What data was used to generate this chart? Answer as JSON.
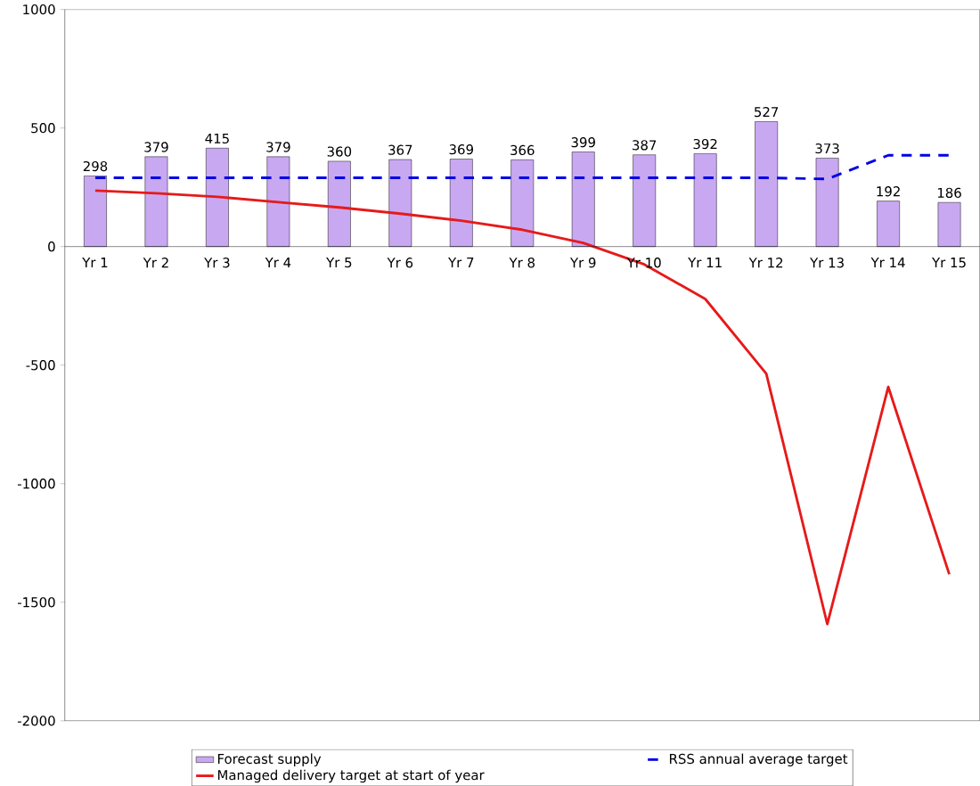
{
  "chart_data": {
    "type": "bar",
    "categories": [
      "Yr 1",
      "Yr 2",
      "Yr 3",
      "Yr 4",
      "Yr 5",
      "Yr 6",
      "Yr 7",
      "Yr 8",
      "Yr 9",
      "Yr 10",
      "Yr 11",
      "Yr 12",
      "Yr 13",
      "Yr 14",
      "Yr 15"
    ],
    "series": [
      {
        "name": "Forecast supply",
        "color": "#c9a8f2",
        "values": [
          298,
          379,
          415,
          379,
          360,
          367,
          369,
          366,
          399,
          387,
          392,
          527,
          373,
          192,
          186
        ],
        "value_labels": [
          "298",
          "379",
          "415",
          "379",
          "360",
          "367",
          "369",
          "366",
          "399",
          "387",
          "392",
          "527",
          "373",
          "192",
          "186"
        ]
      },
      {
        "name": "RSS annual average target",
        "type": "line",
        "line_style": "dashed",
        "color": "#0000e6",
        "values": [
          290,
          290,
          290,
          290,
          290,
          290,
          290,
          290,
          290,
          290,
          290,
          290,
          285,
          385,
          385
        ]
      },
      {
        "name": "Managed delivery target at start of year",
        "type": "line",
        "line_style": "solid",
        "color": "#e61a1a",
        "values": [
          236,
          225,
          210,
          187,
          165,
          139,
          109,
          71,
          15,
          -75,
          -221,
          -536,
          -1592,
          -592,
          -1382
        ]
      }
    ],
    "ylim": [
      -2000,
      1000
    ],
    "yticks": [
      -2000,
      -1500,
      -1000,
      -500,
      0,
      500,
      1000
    ],
    "legend": "bottom"
  }
}
